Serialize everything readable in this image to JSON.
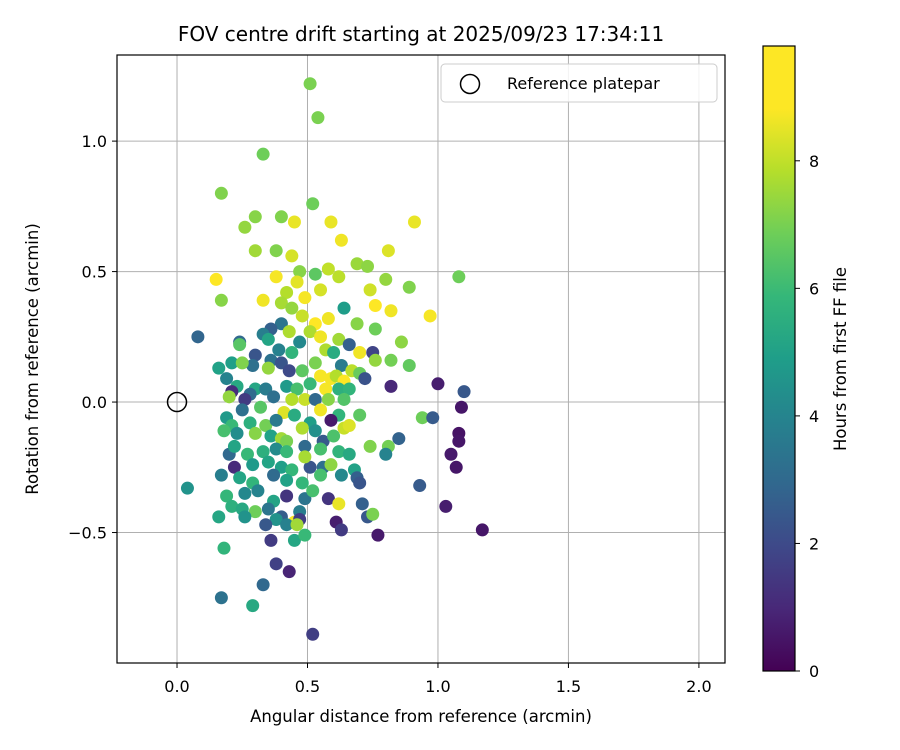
{
  "chart_data": {
    "type": "scatter",
    "title": "FOV centre drift starting at 2025/09/23 17:34:11",
    "xlabel": "Angular distance from reference (arcmin)",
    "ylabel": "Rotation from reference (arcmin)",
    "xlim": [
      -0.23,
      2.1
    ],
    "ylim": [
      -1.0,
      1.33
    ],
    "xticks": [
      0.0,
      0.5,
      1.0,
      1.5,
      2.0
    ],
    "xtick_labels": [
      "0.0",
      "0.5",
      "1.0",
      "1.5",
      "2.0"
    ],
    "yticks": [
      -0.5,
      0.0,
      0.5,
      1.0
    ],
    "ytick_labels": [
      "−0.5",
      "0.0",
      "0.5",
      "1.0"
    ],
    "grid": true,
    "legend": {
      "position": "top-right",
      "entries": [
        "Reference platepar"
      ]
    },
    "reference_point": {
      "x": 0.0,
      "y": 0.0
    },
    "colorbar": {
      "label": "Hours from first FF file",
      "range": [
        0,
        9.8
      ],
      "ticks": [
        0,
        2,
        4,
        6,
        8
      ],
      "tick_labels": [
        "0",
        "2",
        "4",
        "6",
        "8"
      ],
      "colormap": "viridis"
    },
    "points": [
      {
        "x": 0.51,
        "y": 1.22,
        "c": 7.8
      },
      {
        "x": 0.54,
        "y": 1.09,
        "c": 7.8
      },
      {
        "x": 0.33,
        "y": 0.95,
        "c": 7.6
      },
      {
        "x": 0.17,
        "y": 0.8,
        "c": 7.9
      },
      {
        "x": 0.3,
        "y": 0.71,
        "c": 8.0
      },
      {
        "x": 0.4,
        "y": 0.71,
        "c": 7.9
      },
      {
        "x": 0.45,
        "y": 0.69,
        "c": 9.5
      },
      {
        "x": 0.26,
        "y": 0.67,
        "c": 8.2
      },
      {
        "x": 0.52,
        "y": 0.76,
        "c": 7.6
      },
      {
        "x": 0.59,
        "y": 0.69,
        "c": 9.5
      },
      {
        "x": 0.91,
        "y": 0.69,
        "c": 9.5
      },
      {
        "x": 0.63,
        "y": 0.62,
        "c": 9.6
      },
      {
        "x": 0.3,
        "y": 0.58,
        "c": 8.4
      },
      {
        "x": 0.38,
        "y": 0.58,
        "c": 7.9
      },
      {
        "x": 0.44,
        "y": 0.56,
        "c": 9.2
      },
      {
        "x": 0.81,
        "y": 0.58,
        "c": 9.3
      },
      {
        "x": 1.08,
        "y": 0.48,
        "c": 7.6
      },
      {
        "x": 0.15,
        "y": 0.47,
        "c": 9.8
      },
      {
        "x": 0.47,
        "y": 0.5,
        "c": 8.0
      },
      {
        "x": 0.53,
        "y": 0.49,
        "c": 7.3
      },
      {
        "x": 0.58,
        "y": 0.51,
        "c": 8.9
      },
      {
        "x": 0.69,
        "y": 0.53,
        "c": 8.3
      },
      {
        "x": 0.73,
        "y": 0.52,
        "c": 8.1
      },
      {
        "x": 0.62,
        "y": 0.48,
        "c": 8.8
      },
      {
        "x": 0.8,
        "y": 0.47,
        "c": 8.2
      },
      {
        "x": 0.89,
        "y": 0.44,
        "c": 7.9
      },
      {
        "x": 0.74,
        "y": 0.43,
        "c": 9.1
      },
      {
        "x": 0.46,
        "y": 0.46,
        "c": 9.4
      },
      {
        "x": 0.42,
        "y": 0.42,
        "c": 8.7
      },
      {
        "x": 0.38,
        "y": 0.48,
        "c": 9.7
      },
      {
        "x": 0.33,
        "y": 0.39,
        "c": 9.6
      },
      {
        "x": 0.17,
        "y": 0.39,
        "c": 8.0
      },
      {
        "x": 0.49,
        "y": 0.4,
        "c": 9.7
      },
      {
        "x": 0.55,
        "y": 0.43,
        "c": 9.2
      },
      {
        "x": 0.4,
        "y": 0.38,
        "c": 8.5
      },
      {
        "x": 0.76,
        "y": 0.37,
        "c": 9.8
      },
      {
        "x": 0.82,
        "y": 0.35,
        "c": 9.6
      },
      {
        "x": 0.97,
        "y": 0.33,
        "c": 9.7
      },
      {
        "x": 0.64,
        "y": 0.36,
        "c": 5.4
      },
      {
        "x": 0.44,
        "y": 0.36,
        "c": 8.2
      },
      {
        "x": 0.48,
        "y": 0.33,
        "c": 9.0
      },
      {
        "x": 0.53,
        "y": 0.3,
        "c": 9.8
      },
      {
        "x": 0.58,
        "y": 0.32,
        "c": 9.6
      },
      {
        "x": 0.69,
        "y": 0.3,
        "c": 8.0
      },
      {
        "x": 0.76,
        "y": 0.28,
        "c": 7.6
      },
      {
        "x": 0.4,
        "y": 0.3,
        "c": 3.8
      },
      {
        "x": 0.36,
        "y": 0.28,
        "c": 3.0
      },
      {
        "x": 0.33,
        "y": 0.26,
        "c": 4.2
      },
      {
        "x": 0.43,
        "y": 0.27,
        "c": 8.6
      },
      {
        "x": 0.47,
        "y": 0.23,
        "c": 4.6
      },
      {
        "x": 0.51,
        "y": 0.27,
        "c": 8.6
      },
      {
        "x": 0.55,
        "y": 0.25,
        "c": 9.6
      },
      {
        "x": 0.62,
        "y": 0.24,
        "c": 8.4
      },
      {
        "x": 0.66,
        "y": 0.22,
        "c": 3.0
      },
      {
        "x": 0.08,
        "y": 0.25,
        "c": 3.2
      },
      {
        "x": 0.24,
        "y": 0.23,
        "c": 3.3
      },
      {
        "x": 0.24,
        "y": 0.22,
        "c": 7.2
      },
      {
        "x": 0.35,
        "y": 0.24,
        "c": 5.7
      },
      {
        "x": 0.3,
        "y": 0.18,
        "c": 2.6
      },
      {
        "x": 0.39,
        "y": 0.2,
        "c": 4.3
      },
      {
        "x": 0.44,
        "y": 0.19,
        "c": 6.4
      },
      {
        "x": 0.57,
        "y": 0.2,
        "c": 8.6
      },
      {
        "x": 0.6,
        "y": 0.19,
        "c": 6.0
      },
      {
        "x": 0.7,
        "y": 0.19,
        "c": 9.6
      },
      {
        "x": 0.75,
        "y": 0.19,
        "c": 2.0
      },
      {
        "x": 0.76,
        "y": 0.16,
        "c": 8.2
      },
      {
        "x": 0.82,
        "y": 0.16,
        "c": 7.7
      },
      {
        "x": 0.86,
        "y": 0.23,
        "c": 8.1
      },
      {
        "x": 0.89,
        "y": 0.14,
        "c": 7.4
      },
      {
        "x": 0.36,
        "y": 0.16,
        "c": 3.7
      },
      {
        "x": 0.4,
        "y": 0.15,
        "c": 2.6
      },
      {
        "x": 0.29,
        "y": 0.14,
        "c": 3.6
      },
      {
        "x": 0.35,
        "y": 0.13,
        "c": 8.2
      },
      {
        "x": 0.53,
        "y": 0.15,
        "c": 7.8
      },
      {
        "x": 0.48,
        "y": 0.12,
        "c": 7.3
      },
      {
        "x": 0.43,
        "y": 0.12,
        "c": 2.2
      },
      {
        "x": 0.21,
        "y": 0.15,
        "c": 5.5
      },
      {
        "x": 0.25,
        "y": 0.15,
        "c": 7.9
      },
      {
        "x": 0.16,
        "y": 0.13,
        "c": 5.6
      },
      {
        "x": 0.63,
        "y": 0.14,
        "c": 4.1
      },
      {
        "x": 0.67,
        "y": 0.12,
        "c": 8.8
      },
      {
        "x": 0.7,
        "y": 0.11,
        "c": 7.5
      },
      {
        "x": 0.55,
        "y": 0.1,
        "c": 9.7
      },
      {
        "x": 0.59,
        "y": 0.09,
        "c": 9.7
      },
      {
        "x": 0.61,
        "y": 0.1,
        "c": 8.7
      },
      {
        "x": 0.64,
        "y": 0.08,
        "c": 9.8
      },
      {
        "x": 0.72,
        "y": 0.09,
        "c": 2.5
      },
      {
        "x": 0.19,
        "y": 0.09,
        "c": 4.4
      },
      {
        "x": 0.23,
        "y": 0.06,
        "c": 5.9
      },
      {
        "x": 0.21,
        "y": 0.04,
        "c": 1.3
      },
      {
        "x": 0.3,
        "y": 0.05,
        "c": 5.8
      },
      {
        "x": 0.34,
        "y": 0.05,
        "c": 4.1
      },
      {
        "x": 0.28,
        "y": 0.03,
        "c": 3.4
      },
      {
        "x": 0.42,
        "y": 0.06,
        "c": 5.3
      },
      {
        "x": 0.46,
        "y": 0.05,
        "c": 6.9
      },
      {
        "x": 0.51,
        "y": 0.07,
        "c": 6.6
      },
      {
        "x": 0.57,
        "y": 0.05,
        "c": 9.7
      },
      {
        "x": 0.62,
        "y": 0.05,
        "c": 6.2
      },
      {
        "x": 0.66,
        "y": 0.05,
        "c": 6.4
      },
      {
        "x": 0.2,
        "y": 0.02,
        "c": 8.2
      },
      {
        "x": 0.26,
        "y": 0.01,
        "c": 1.7
      },
      {
        "x": 0.37,
        "y": 0.02,
        "c": 3.6
      },
      {
        "x": 0.44,
        "y": 0.01,
        "c": 8.7
      },
      {
        "x": 0.49,
        "y": 0.01,
        "c": 9.0
      },
      {
        "x": 0.53,
        "y": 0.01,
        "c": 3.3
      },
      {
        "x": 0.58,
        "y": 0.01,
        "c": 8.0
      },
      {
        "x": 0.64,
        "y": 0.01,
        "c": 7.1
      },
      {
        "x": 0.82,
        "y": 0.06,
        "c": 1.1
      },
      {
        "x": 1.0,
        "y": 0.07,
        "c": 0.8
      },
      {
        "x": 1.1,
        "y": 0.04,
        "c": 2.7
      },
      {
        "x": 0.25,
        "y": -0.03,
        "c": 3.6
      },
      {
        "x": 0.32,
        "y": -0.02,
        "c": 7.2
      },
      {
        "x": 0.41,
        "y": -0.04,
        "c": 9.3
      },
      {
        "x": 0.45,
        "y": -0.05,
        "c": 6.0
      },
      {
        "x": 0.55,
        "y": -0.03,
        "c": 9.6
      },
      {
        "x": 0.62,
        "y": -0.05,
        "c": 6.4
      },
      {
        "x": 0.7,
        "y": -0.05,
        "c": 7.3
      },
      {
        "x": 0.94,
        "y": -0.06,
        "c": 7.6
      },
      {
        "x": 0.98,
        "y": -0.06,
        "c": 2.8
      },
      {
        "x": 1.09,
        "y": -0.02,
        "c": 0.6
      },
      {
        "x": 0.19,
        "y": -0.06,
        "c": 5.3
      },
      {
        "x": 0.21,
        "y": -0.09,
        "c": 6.6
      },
      {
        "x": 0.28,
        "y": -0.08,
        "c": 6.2
      },
      {
        "x": 0.34,
        "y": -0.09,
        "c": 7.7
      },
      {
        "x": 0.38,
        "y": -0.07,
        "c": 4.0
      },
      {
        "x": 0.51,
        "y": -0.08,
        "c": 5.5
      },
      {
        "x": 0.59,
        "y": -0.07,
        "c": 0.7
      },
      {
        "x": 0.64,
        "y": -0.1,
        "c": 9.0
      },
      {
        "x": 0.66,
        "y": -0.09,
        "c": 9.3
      },
      {
        "x": 0.18,
        "y": -0.11,
        "c": 6.9
      },
      {
        "x": 0.23,
        "y": -0.12,
        "c": 4.8
      },
      {
        "x": 0.3,
        "y": -0.12,
        "c": 8.0
      },
      {
        "x": 0.36,
        "y": -0.13,
        "c": 5.6
      },
      {
        "x": 0.4,
        "y": -0.14,
        "c": 8.4
      },
      {
        "x": 0.42,
        "y": -0.15,
        "c": 7.8
      },
      {
        "x": 0.48,
        "y": -0.1,
        "c": 8.6
      },
      {
        "x": 0.53,
        "y": -0.11,
        "c": 4.9
      },
      {
        "x": 0.56,
        "y": -0.15,
        "c": 2.8
      },
      {
        "x": 0.6,
        "y": -0.13,
        "c": 7.0
      },
      {
        "x": 0.74,
        "y": -0.17,
        "c": 7.9
      },
      {
        "x": 0.81,
        "y": -0.17,
        "c": 7.7
      },
      {
        "x": 0.85,
        "y": -0.14,
        "c": 3.1
      },
      {
        "x": 1.08,
        "y": -0.12,
        "c": 0.5
      },
      {
        "x": 1.08,
        "y": -0.15,
        "c": 0.6
      },
      {
        "x": 1.05,
        "y": -0.2,
        "c": 0.7
      },
      {
        "x": 0.2,
        "y": -0.2,
        "c": 3.3
      },
      {
        "x": 0.22,
        "y": -0.17,
        "c": 5.7
      },
      {
        "x": 0.27,
        "y": -0.2,
        "c": 6.6
      },
      {
        "x": 0.33,
        "y": -0.19,
        "c": 6.2
      },
      {
        "x": 0.38,
        "y": -0.18,
        "c": 4.7
      },
      {
        "x": 0.42,
        "y": -0.19,
        "c": 6.6
      },
      {
        "x": 0.49,
        "y": -0.17,
        "c": 3.4
      },
      {
        "x": 0.55,
        "y": -0.18,
        "c": 6.9
      },
      {
        "x": 0.62,
        "y": -0.19,
        "c": 6.4
      },
      {
        "x": 0.66,
        "y": -0.2,
        "c": 5.9
      },
      {
        "x": 0.8,
        "y": -0.2,
        "c": 4.4
      },
      {
        "x": 0.22,
        "y": -0.25,
        "c": 1.2
      },
      {
        "x": 0.29,
        "y": -0.24,
        "c": 5.3
      },
      {
        "x": 0.35,
        "y": -0.23,
        "c": 5.7
      },
      {
        "x": 0.4,
        "y": -0.25,
        "c": 5.5
      },
      {
        "x": 0.44,
        "y": -0.26,
        "c": 6.5
      },
      {
        "x": 0.51,
        "y": -0.25,
        "c": 2.6
      },
      {
        "x": 0.56,
        "y": -0.25,
        "c": 3.6
      },
      {
        "x": 0.59,
        "y": -0.24,
        "c": 8.1
      },
      {
        "x": 0.68,
        "y": -0.26,
        "c": 5.6
      },
      {
        "x": 0.49,
        "y": -0.21,
        "c": 8.5
      },
      {
        "x": 1.07,
        "y": -0.25,
        "c": 0.6
      },
      {
        "x": 0.17,
        "y": -0.28,
        "c": 4.2
      },
      {
        "x": 0.24,
        "y": -0.29,
        "c": 5.7
      },
      {
        "x": 0.29,
        "y": -0.31,
        "c": 6.4
      },
      {
        "x": 0.37,
        "y": -0.28,
        "c": 3.4
      },
      {
        "x": 0.42,
        "y": -0.3,
        "c": 5.6
      },
      {
        "x": 0.48,
        "y": -0.31,
        "c": 6.5
      },
      {
        "x": 0.55,
        "y": -0.28,
        "c": 6.9
      },
      {
        "x": 0.63,
        "y": -0.28,
        "c": 4.6
      },
      {
        "x": 0.69,
        "y": -0.29,
        "c": 3.0
      },
      {
        "x": 0.7,
        "y": -0.31,
        "c": 2.6
      },
      {
        "x": 0.93,
        "y": -0.32,
        "c": 2.8
      },
      {
        "x": 0.19,
        "y": -0.36,
        "c": 6.5
      },
      {
        "x": 0.26,
        "y": -0.35,
        "c": 4.6
      },
      {
        "x": 0.31,
        "y": -0.34,
        "c": 4.4
      },
      {
        "x": 0.37,
        "y": -0.38,
        "c": 5.7
      },
      {
        "x": 0.42,
        "y": -0.36,
        "c": 1.5
      },
      {
        "x": 0.49,
        "y": -0.37,
        "c": 3.8
      },
      {
        "x": 0.52,
        "y": -0.34,
        "c": 6.9
      },
      {
        "x": 0.58,
        "y": -0.37,
        "c": 1.5
      },
      {
        "x": 0.62,
        "y": -0.39,
        "c": 9.5
      },
      {
        "x": 0.71,
        "y": -0.39,
        "c": 3.0
      },
      {
        "x": 0.21,
        "y": -0.4,
        "c": 6.2
      },
      {
        "x": 0.25,
        "y": -0.41,
        "c": 5.9
      },
      {
        "x": 0.3,
        "y": -0.42,
        "c": 7.6
      },
      {
        "x": 0.35,
        "y": -0.41,
        "c": 3.8
      },
      {
        "x": 0.4,
        "y": -0.44,
        "c": 2.9
      },
      {
        "x": 0.47,
        "y": -0.42,
        "c": 4.2
      },
      {
        "x": 0.16,
        "y": -0.44,
        "c": 5.8
      },
      {
        "x": 0.26,
        "y": -0.44,
        "c": 5.0
      },
      {
        "x": 0.38,
        "y": -0.45,
        "c": 5.0
      },
      {
        "x": 0.45,
        "y": -0.46,
        "c": 9.7
      },
      {
        "x": 0.47,
        "y": -0.45,
        "c": 1.8
      },
      {
        "x": 0.61,
        "y": -0.46,
        "c": 0.8
      },
      {
        "x": 0.73,
        "y": -0.44,
        "c": 2.7
      },
      {
        "x": 0.75,
        "y": -0.43,
        "c": 7.8
      },
      {
        "x": 0.34,
        "y": -0.47,
        "c": 2.7
      },
      {
        "x": 0.42,
        "y": -0.47,
        "c": 4.3
      },
      {
        "x": 0.46,
        "y": -0.47,
        "c": 8.4
      },
      {
        "x": 0.63,
        "y": -0.49,
        "c": 1.7
      },
      {
        "x": 1.03,
        "y": -0.4,
        "c": 0.8
      },
      {
        "x": 1.17,
        "y": -0.49,
        "c": 0.6
      },
      {
        "x": 0.36,
        "y": -0.53,
        "c": 1.7
      },
      {
        "x": 0.45,
        "y": -0.53,
        "c": 5.8
      },
      {
        "x": 0.49,
        "y": -0.51,
        "c": 6.6
      },
      {
        "x": 0.77,
        "y": -0.51,
        "c": 0.7
      },
      {
        "x": 0.18,
        "y": -0.56,
        "c": 6.4
      },
      {
        "x": 0.38,
        "y": -0.62,
        "c": 1.9
      },
      {
        "x": 0.43,
        "y": -0.65,
        "c": 1.0
      },
      {
        "x": 0.33,
        "y": -0.7,
        "c": 3.3
      },
      {
        "x": 0.17,
        "y": -0.75,
        "c": 3.7
      },
      {
        "x": 0.29,
        "y": -0.78,
        "c": 5.9
      },
      {
        "x": 0.52,
        "y": -0.89,
        "c": 1.8
      },
      {
        "x": 0.04,
        "y": -0.33,
        "c": 5.0
      }
    ]
  }
}
